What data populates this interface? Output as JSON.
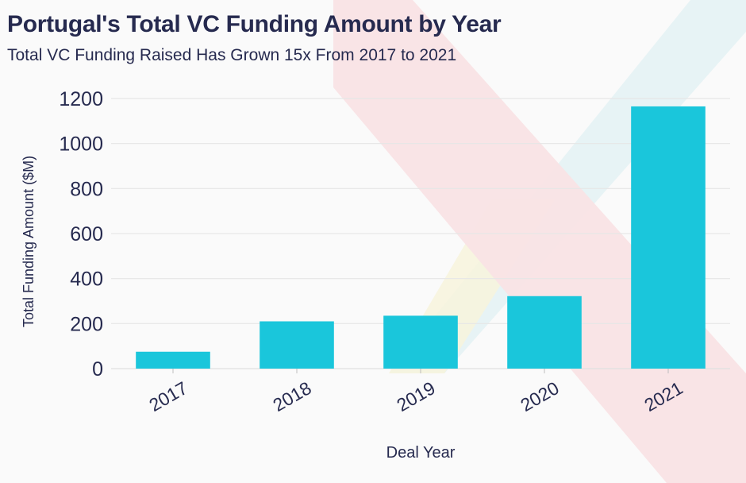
{
  "chart_data": {
    "type": "bar",
    "title": "Portugal's Total VC Funding Amount by Year",
    "subtitle": "Total VC Funding Raised Has Grown 15x From 2017 to 2021",
    "categories": [
      "2017",
      "2018",
      "2019",
      "2020",
      "2021"
    ],
    "values": [
      75,
      210,
      235,
      322,
      1165
    ],
    "xlabel": "Deal Year",
    "ylabel": "Total Funding Amount ($M)",
    "ylim": [
      0,
      1200
    ],
    "yticks": [
      0,
      200,
      400,
      600,
      800,
      1000,
      1200
    ],
    "grid": true,
    "bar_color": "#1ac6db"
  }
}
